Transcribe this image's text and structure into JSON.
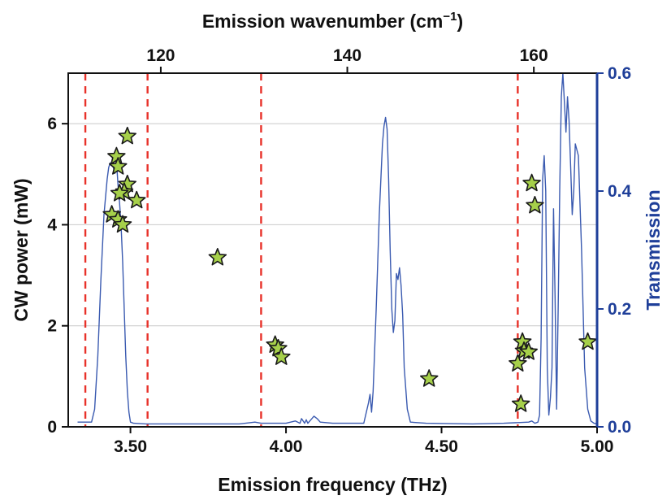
{
  "chart_data": {
    "type": "scatter",
    "xlabel": "Emission frequency (THz)",
    "x2label": "Emission wavenumber (cm",
    "x2label_sup": "−1",
    "x2label_end": ")",
    "ylabel": "CW power (mW)",
    "y2label": "Transmission",
    "xlim": [
      3.3,
      5.0
    ],
    "ylim": [
      0,
      7
    ],
    "y2lim": [
      0,
      0.6
    ],
    "x_ticks": [
      3.5,
      4.0,
      4.5,
      5.0
    ],
    "x_tick_labels": [
      "3.50",
      "4.00",
      "4.50",
      "5.00"
    ],
    "x2_ticks": [
      120,
      140,
      160
    ],
    "x2_tick_labels": [
      "120",
      "140",
      "160"
    ],
    "y_ticks": [
      0,
      2,
      4,
      6
    ],
    "y_tick_labels": [
      "0",
      "2",
      "4",
      "6"
    ],
    "y2_ticks": [
      0.0,
      0.2,
      0.4,
      0.6
    ],
    "y2_tick_labels": [
      "0.0",
      "0.2",
      "0.4",
      "0.6"
    ],
    "grid": "horizontal",
    "dashed_lines_x": [
      3.355,
      3.555,
      3.92,
      4.745
    ],
    "series": [
      {
        "type": "scatter",
        "marker": "star",
        "axis": "left",
        "color": "#a6d04a",
        "x": [
          3.49,
          3.455,
          3.46,
          3.49,
          3.48,
          3.52,
          3.465,
          3.44,
          3.46,
          3.475,
          3.78,
          3.965,
          3.975,
          3.985,
          4.46,
          4.76,
          4.765,
          4.78,
          4.745,
          4.755,
          4.79,
          4.8,
          4.97
        ],
        "y": [
          5.75,
          5.35,
          5.15,
          4.8,
          4.65,
          4.48,
          4.62,
          4.2,
          4.1,
          4.0,
          3.35,
          1.62,
          1.55,
          1.38,
          0.95,
          1.68,
          1.5,
          1.48,
          1.25,
          0.45,
          4.82,
          4.38,
          1.68
        ]
      },
      {
        "type": "line",
        "axis": "right",
        "color": "#3a5ab0",
        "x": [
          3.33,
          3.375,
          3.385,
          3.395,
          3.405,
          3.415,
          3.425,
          3.43,
          3.435,
          3.44,
          3.445,
          3.45,
          3.455,
          3.46,
          3.465,
          3.47,
          3.475,
          3.48,
          3.485,
          3.49,
          3.495,
          3.5,
          3.51,
          3.55,
          3.7,
          3.85,
          3.9,
          3.92,
          3.95,
          4.0,
          4.03,
          4.045,
          4.05,
          4.06,
          4.065,
          4.07,
          4.08,
          4.09,
          4.1,
          4.11,
          4.15,
          4.25,
          4.265,
          4.27,
          4.275,
          4.28,
          4.29,
          4.3,
          4.31,
          4.315,
          4.32,
          4.325,
          4.33,
          4.335,
          4.34,
          4.345,
          4.35,
          4.355,
          4.36,
          4.365,
          4.37,
          4.375,
          4.38,
          4.39,
          4.4,
          4.45,
          4.6,
          4.7,
          4.78,
          4.79,
          4.8,
          4.81,
          4.815,
          4.82,
          4.825,
          4.83,
          4.835,
          4.84,
          4.845,
          4.85,
          4.855,
          4.86,
          4.865,
          4.87,
          4.875,
          4.88,
          4.885,
          4.89,
          4.895,
          4.9,
          4.905,
          4.91,
          4.915,
          4.92,
          4.925,
          4.93,
          4.94,
          4.95,
          4.96,
          4.97,
          4.98,
          4.99,
          5.0
        ],
        "y": [
          0.008,
          0.008,
          0.03,
          0.12,
          0.25,
          0.36,
          0.42,
          0.44,
          0.448,
          0.445,
          0.44,
          0.43,
          0.45,
          0.41,
          0.38,
          0.34,
          0.28,
          0.2,
          0.12,
          0.06,
          0.025,
          0.008,
          0.006,
          0.005,
          0.005,
          0.005,
          0.008,
          0.006,
          0.006,
          0.006,
          0.01,
          0.006,
          0.014,
          0.006,
          0.012,
          0.006,
          0.012,
          0.018,
          0.014,
          0.008,
          0.006,
          0.006,
          0.04,
          0.055,
          0.025,
          0.06,
          0.2,
          0.36,
          0.48,
          0.51,
          0.525,
          0.505,
          0.42,
          0.3,
          0.2,
          0.16,
          0.18,
          0.26,
          0.25,
          0.27,
          0.24,
          0.19,
          0.1,
          0.03,
          0.008,
          0.006,
          0.005,
          0.006,
          0.008,
          0.01,
          0.006,
          0.008,
          0.02,
          0.15,
          0.42,
          0.46,
          0.4,
          0.1,
          0.02,
          0.05,
          0.1,
          0.37,
          0.22,
          0.03,
          0.2,
          0.4,
          0.56,
          0.6,
          0.55,
          0.5,
          0.56,
          0.52,
          0.44,
          0.36,
          0.4,
          0.48,
          0.46,
          0.3,
          0.1,
          0.03,
          0.01,
          0.006,
          0.005
        ]
      }
    ]
  },
  "colors": {
    "left_axis": "#111111",
    "right_axis": "#1f3f99",
    "dashed": "#e8322a",
    "grid": "#c9c9c9",
    "star_fill": "#a6d04a",
    "star_stroke": "#1a1a1a"
  }
}
